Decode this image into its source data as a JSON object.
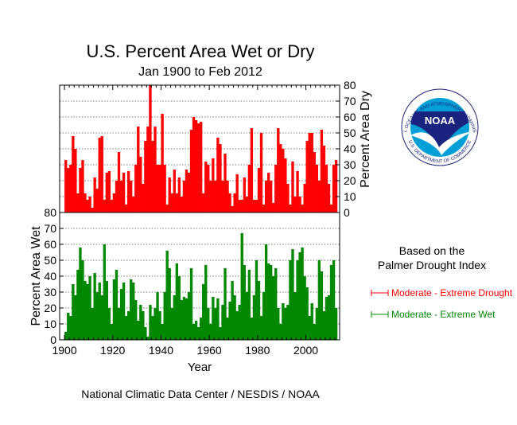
{
  "chart_data": [
    {
      "type": "area",
      "title": "U.S. Percent Area Wet or Dry",
      "subtitle": "Jan 1900 to Feb 2012",
      "panel": "top",
      "ylabel": "Percent Area Dry",
      "yaxis_side": "right",
      "ylim": [
        0,
        80
      ],
      "yticks": [
        "0",
        "10",
        "20",
        "30",
        "40",
        "50",
        "60",
        "70",
        "80"
      ],
      "xlim": [
        1898,
        2014
      ],
      "grid": true,
      "color": "#ff0000",
      "series": [
        {
          "name": "Moderate - Extreme Drought",
          "x": [
            1900,
            1901,
            1902,
            1903,
            1904,
            1905,
            1906,
            1907,
            1908,
            1909,
            1910,
            1911,
            1912,
            1913,
            1914,
            1915,
            1916,
            1917,
            1918,
            1919,
            1920,
            1921,
            1922,
            1923,
            1924,
            1925,
            1926,
            1927,
            1928,
            1929,
            1930,
            1931,
            1932,
            1933,
            1934,
            1935,
            1936,
            1937,
            1938,
            1939,
            1940,
            1941,
            1942,
            1943,
            1944,
            1945,
            1946,
            1947,
            1948,
            1949,
            1950,
            1951,
            1952,
            1953,
            1954,
            1955,
            1956,
            1957,
            1958,
            1959,
            1960,
            1961,
            1962,
            1963,
            1964,
            1965,
            1966,
            1967,
            1968,
            1969,
            1970,
            1971,
            1972,
            1973,
            1974,
            1975,
            1976,
            1977,
            1978,
            1979,
            1980,
            1981,
            1982,
            1983,
            1984,
            1985,
            1986,
            1987,
            1988,
            1989,
            1990,
            1991,
            1992,
            1993,
            1994,
            1995,
            1996,
            1997,
            1998,
            1999,
            2000,
            2001,
            2002,
            2003,
            2004,
            2005,
            2006,
            2007,
            2008,
            2009,
            2010,
            2011,
            2012
          ],
          "values": [
            33,
            28,
            30,
            48,
            40,
            12,
            28,
            33,
            12,
            8,
            10,
            3,
            22,
            15,
            47,
            48,
            8,
            25,
            26,
            8,
            12,
            20,
            38,
            20,
            25,
            5,
            26,
            20,
            10,
            30,
            54,
            35,
            18,
            45,
            54,
            80,
            45,
            54,
            30,
            30,
            62,
            30,
            5,
            22,
            12,
            27,
            12,
            22,
            10,
            20,
            27,
            25,
            52,
            60,
            58,
            56,
            57,
            12,
            32,
            30,
            20,
            34,
            20,
            47,
            43,
            20,
            37,
            20,
            12,
            4,
            12,
            24,
            8,
            8,
            22,
            10,
            30,
            53,
            8,
            8,
            28,
            50,
            5,
            20,
            25,
            20,
            6,
            30,
            53,
            43,
            40,
            34,
            18,
            5,
            32,
            10,
            26,
            10,
            5,
            18,
            45,
            50,
            50,
            38,
            30,
            20,
            52,
            42,
            30,
            18,
            5,
            30,
            33
          ]
        }
      ]
    },
    {
      "type": "area",
      "panel": "bottom",
      "xlabel": "Year",
      "ylabel": "Percent Area Wet",
      "yaxis_side": "left",
      "ylim": [
        0,
        80
      ],
      "yticks": [
        "0",
        "10",
        "20",
        "30",
        "40",
        "50",
        "60",
        "70",
        "80"
      ],
      "xlim": [
        1898,
        2014
      ],
      "xticks": [
        "1900",
        "1920",
        "1940",
        "1960",
        "1980",
        "2000"
      ],
      "grid": true,
      "color": "#008800",
      "series": [
        {
          "name": "Moderate - Extreme Wet",
          "x": [
            1900,
            1901,
            1902,
            1903,
            1904,
            1905,
            1906,
            1907,
            1908,
            1909,
            1910,
            1911,
            1912,
            1913,
            1914,
            1915,
            1916,
            1917,
            1918,
            1919,
            1920,
            1921,
            1922,
            1923,
            1924,
            1925,
            1926,
            1927,
            1928,
            1929,
            1930,
            1931,
            1932,
            1933,
            1934,
            1935,
            1936,
            1937,
            1938,
            1939,
            1940,
            1941,
            1942,
            1943,
            1944,
            1945,
            1946,
            1947,
            1948,
            1949,
            1950,
            1951,
            1952,
            1953,
            1954,
            1955,
            1956,
            1957,
            1958,
            1959,
            1960,
            1961,
            1962,
            1963,
            1964,
            1965,
            1966,
            1967,
            1968,
            1969,
            1970,
            1971,
            1972,
            1973,
            1974,
            1975,
            1976,
            1977,
            1978,
            1979,
            1980,
            1981,
            1982,
            1983,
            1984,
            1985,
            1986,
            1987,
            1988,
            1989,
            1990,
            1991,
            1992,
            1993,
            1994,
            1995,
            1996,
            1997,
            1998,
            1999,
            2000,
            2001,
            2002,
            2003,
            2004,
            2005,
            2006,
            2007,
            2008,
            2009,
            2010,
            2011,
            2012
          ],
          "values": [
            5,
            17,
            15,
            35,
            28,
            44,
            58,
            50,
            37,
            35,
            40,
            20,
            42,
            30,
            36,
            28,
            60,
            37,
            20,
            10,
            38,
            44,
            20,
            32,
            36,
            15,
            18,
            38,
            36,
            25,
            12,
            22,
            18,
            8,
            2,
            22,
            15,
            20,
            30,
            18,
            10,
            30,
            56,
            45,
            20,
            28,
            48,
            40,
            25,
            27,
            26,
            30,
            45,
            10,
            12,
            8,
            14,
            35,
            47,
            20,
            10,
            27,
            20,
            26,
            8,
            22,
            45,
            14,
            24,
            37,
            28,
            18,
            22,
            67,
            47,
            30,
            44,
            14,
            28,
            50,
            37,
            15,
            30,
            60,
            48,
            47,
            40,
            45,
            20,
            10,
            23,
            20,
            22,
            50,
            57,
            30,
            50,
            55,
            58,
            40,
            33,
            15,
            23,
            10,
            20,
            50,
            43,
            18,
            27,
            28,
            47,
            50,
            20
          ]
        }
      ]
    }
  ],
  "legend": {
    "heading_line1": "Based on the",
    "heading_line2": "Palmer Drought Index",
    "items": [
      {
        "label": "Moderate - Extreme Drought",
        "color": "#ff0000"
      },
      {
        "label": "Moderate - Extreme Wet",
        "color": "#008800"
      }
    ]
  },
  "logo": {
    "name": "noaa-logo",
    "wordmark": "NOAA",
    "ring_top": "NATIONAL OCEANIC AND ATMOSPHERIC ADMINISTRATION",
    "ring_bottom": "U.S. DEPARTMENT OF COMMERCE",
    "colors": {
      "navy": "#1a237e",
      "cyan": "#00a0d6"
    }
  },
  "footer": "National Climatic Data Center / NESDIS / NOAA"
}
